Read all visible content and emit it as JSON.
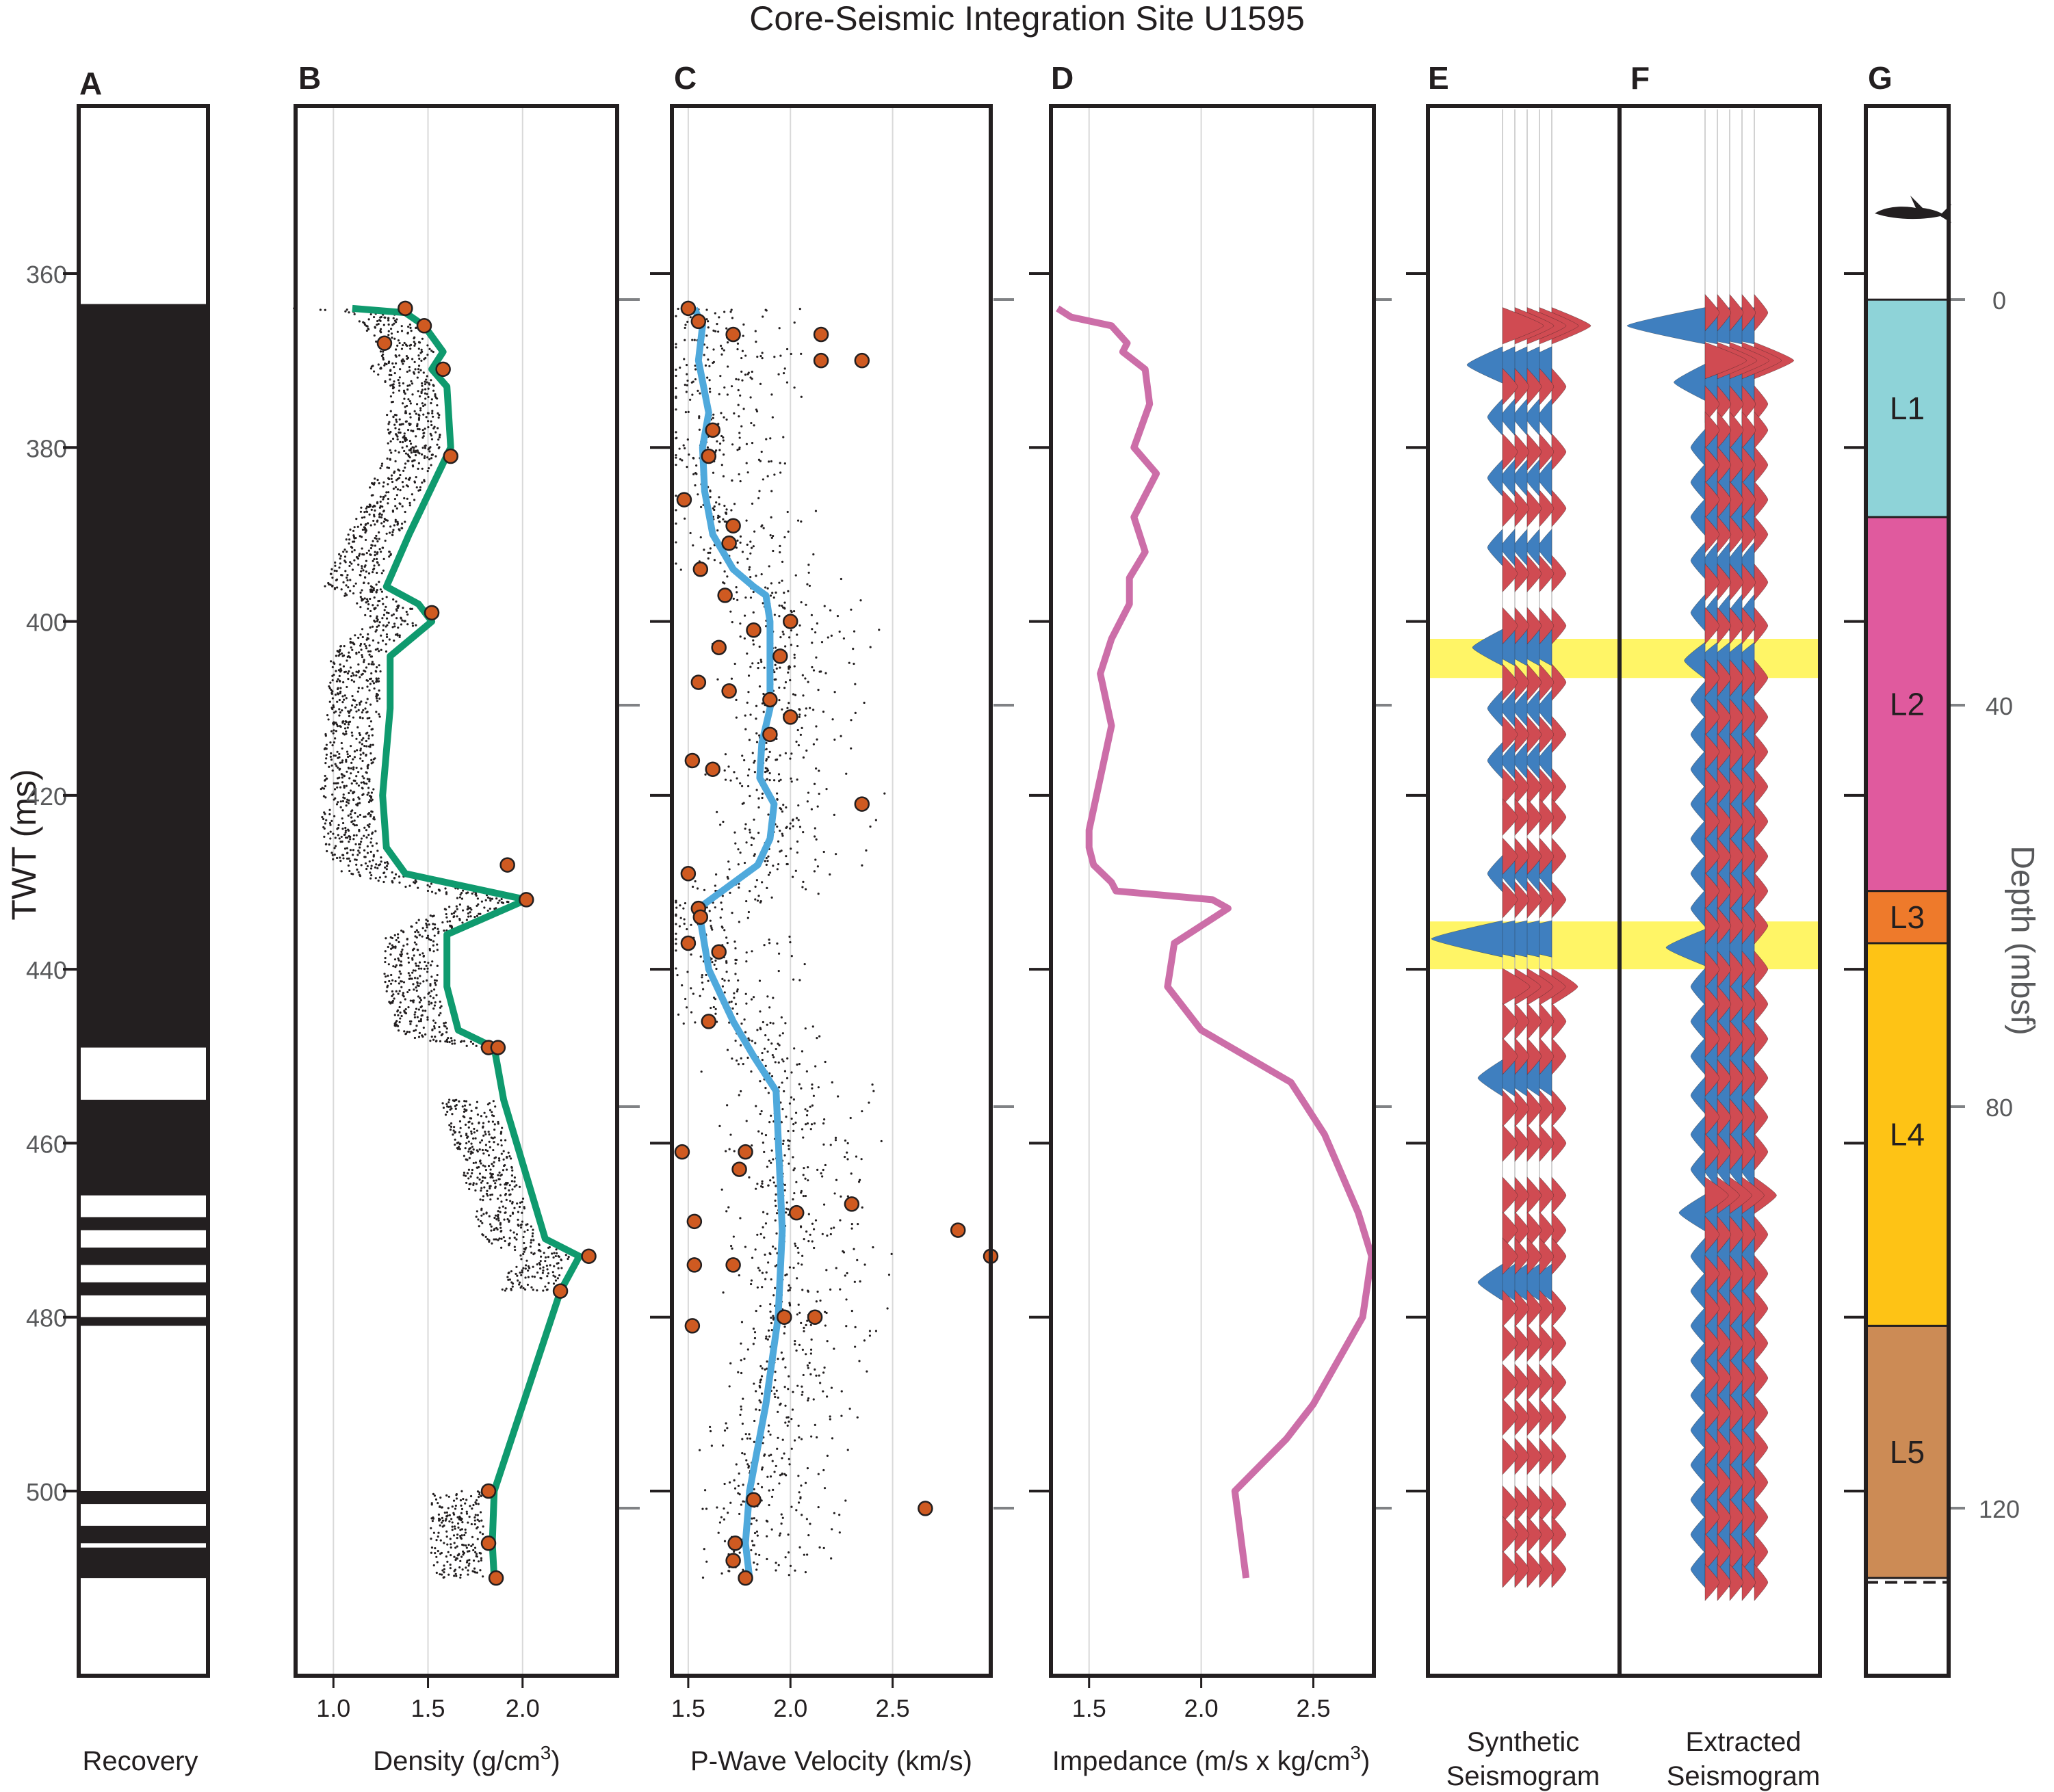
{
  "title": "Core-Seismic Integration Site U1595",
  "panel_letters": [
    "A",
    "B",
    "C",
    "D",
    "E",
    "F",
    "G"
  ],
  "twt_axis": {
    "label": "TWT (ms)",
    "ticks": [
      360,
      380,
      400,
      420,
      440,
      460,
      480,
      500
    ],
    "range": [
      340,
      520
    ]
  },
  "depth_axis": {
    "label": "Depth (mbsf)",
    "ticks": [
      0,
      40,
      80,
      120
    ]
  },
  "panel_labels": {
    "A": "Recovery",
    "B": "Density (g/cm",
    "B_sup": "3",
    "B_tail": ")",
    "C": "P-Wave Velocity (km/s)",
    "D": "Impedance (m/s x kg/cm",
    "D_sup": "3",
    "D_tail": ")",
    "E1": "Synthetic",
    "E2": "Seismogram",
    "F1": "Extracted",
    "F2": "Seismogram"
  },
  "colors": {
    "density_line": "#0f9a6e",
    "velocity_line": "#4fa9dc",
    "impedance_line": "#cc6ea8",
    "sample_fill": "#cf5a21",
    "wiggle_positive": "#d04b52",
    "wiggle_negative": "#3f7fbf",
    "highlight": "#fff566",
    "L1": "#8ed3d8",
    "L2": "#e05a9e",
    "L3": "#ee7a2b",
    "L4": "#fec315",
    "L5": "#cc8b55"
  },
  "shark_icon": "shark-icon",
  "chart_data": [
    {
      "panel": "A",
      "type": "table",
      "xlabel": "Recovery",
      "recovered_intervals_ms": [
        [
          363.5,
          449
        ],
        [
          455,
          466
        ],
        [
          468.5,
          470
        ],
        [
          472,
          474
        ],
        [
          476,
          477.5
        ],
        [
          480,
          481
        ],
        [
          500,
          501.5
        ],
        [
          504,
          506
        ],
        [
          506.5,
          510
        ]
      ]
    },
    {
      "panel": "B",
      "type": "line",
      "xlabel": "Density (g/cm3)",
      "xticks": [
        1.0,
        1.5,
        2.0
      ],
      "xlim": [
        0.8,
        2.5
      ],
      "series": [
        {
          "x": [
            1.1,
            1.38,
            1.48,
            1.58,
            1.52,
            1.6,
            1.62,
            1.4,
            1.32,
            1.28,
            1.45,
            1.52,
            1.3,
            1.3,
            1.26,
            1.28,
            1.38,
            2.02,
            1.6,
            1.6,
            1.66,
            1.85,
            1.9,
            2.12,
            2.3,
            2.2,
            1.85,
            1.84,
            1.85
          ],
          "y": [
            364,
            364.5,
            366,
            369,
            371,
            373,
            380,
            390,
            394,
            396,
            398,
            400,
            404,
            410,
            420,
            426,
            429,
            432,
            436,
            442,
            447,
            449,
            455,
            471,
            473,
            477,
            500,
            506,
            510
          ]
        }
      ],
      "samples": {
        "x": [
          1.38,
          1.48,
          1.27,
          1.58,
          1.62,
          1.52,
          1.92,
          2.02,
          1.82,
          1.87,
          2.35,
          2.2,
          1.82,
          1.82,
          1.86
        ],
        "y": [
          364,
          366,
          368,
          371,
          381,
          399,
          428,
          432,
          449,
          449,
          473,
          477,
          500,
          506,
          510
        ]
      }
    },
    {
      "panel": "C",
      "type": "line",
      "xlabel": "P-Wave Velocity (km/s)",
      "xticks": [
        1.5,
        2.0,
        2.5
      ],
      "xlim": [
        1.42,
        2.98
      ],
      "series": [
        {
          "x": [
            1.53,
            1.57,
            1.55,
            1.6,
            1.57,
            1.58,
            1.62,
            1.72,
            1.82,
            1.88,
            1.9,
            1.9,
            1.9,
            1.86,
            1.85,
            1.92,
            1.9,
            1.84,
            1.55,
            1.6,
            1.72,
            1.82,
            1.93,
            1.96,
            1.94,
            1.88,
            1.8,
            1.78,
            1.8
          ],
          "y": [
            364,
            366,
            370,
            376,
            380,
            385,
            390,
            394,
            396,
            397,
            400,
            404,
            410,
            414,
            418,
            421,
            425,
            428,
            433,
            440,
            446,
            450,
            454,
            470,
            480,
            490,
            500,
            506,
            510
          ]
        }
      ],
      "samples": {
        "x": [
          1.5,
          1.55,
          1.72,
          2.15,
          2.15,
          1.62,
          2.35,
          1.6,
          1.48,
          1.72,
          1.7,
          1.56,
          1.68,
          2.0,
          1.82,
          1.65,
          1.95,
          1.55,
          1.7,
          1.9,
          2.0,
          1.9,
          2.35,
          1.52,
          1.62,
          1.5,
          1.55,
          1.56,
          1.5,
          1.65,
          1.6,
          1.47,
          1.78,
          1.75,
          2.3,
          2.03,
          1.53,
          2.82,
          2.98,
          1.53,
          1.72,
          1.97,
          2.12,
          1.52,
          1.82,
          2.66,
          1.73,
          1.72,
          1.78
        ],
        "y": [
          364,
          365.5,
          367,
          367,
          370,
          378,
          370,
          381,
          386,
          389,
          391,
          394,
          397,
          400,
          401,
          403,
          404,
          407,
          408,
          409,
          411,
          413,
          421,
          416,
          417,
          429,
          433,
          434,
          437,
          438,
          446,
          461,
          461,
          463,
          467,
          468,
          469,
          470,
          473,
          474,
          474,
          480,
          480,
          481,
          501,
          502,
          506,
          508,
          510
        ]
      }
    },
    {
      "panel": "D",
      "type": "line",
      "xlabel": "Impedance (m/s x kg/cm3)",
      "xticks": [
        1.5,
        2.0,
        2.5
      ],
      "xlim": [
        1.33,
        2.77
      ],
      "series": [
        {
          "x": [
            1.36,
            1.42,
            1.6,
            1.67,
            1.65,
            1.75,
            1.77,
            1.7,
            1.8,
            1.7,
            1.75,
            1.68,
            1.68,
            1.6,
            1.55,
            1.6,
            1.55,
            1.5,
            1.5,
            1.52,
            1.6,
            1.62,
            2.05,
            2.12,
            1.88,
            1.85,
            2.0,
            2.4,
            2.55,
            2.7,
            2.76,
            2.72,
            2.5,
            2.38,
            2.15,
            2.18,
            2.2
          ],
          "y": [
            364,
            365,
            366,
            368,
            369,
            371,
            375,
            380,
            383,
            388,
            392,
            395,
            398,
            402,
            406,
            412,
            418,
            424,
            426,
            428,
            430,
            431,
            432,
            433,
            437,
            442,
            447,
            453,
            459,
            468,
            473,
            480,
            490,
            494,
            500,
            506,
            510
          ]
        }
      ]
    },
    {
      "panel": "E",
      "type": "area",
      "xlabel": "Synthetic Seismogram",
      "highlights_ms": [
        [
          402,
          406.5
        ],
        [
          434.5,
          440
        ]
      ],
      "negative_peaks_ms": [
        370.5,
        376.5,
        383.5,
        391.5,
        403,
        410,
        416,
        429,
        436.5,
        452.5,
        476
      ],
      "positive_peaks_ms": [
        366,
        373,
        380.5,
        387,
        394.5,
        400.5,
        407,
        413,
        419,
        422.5,
        427,
        432,
        442,
        446,
        450,
        456,
        460,
        466,
        470,
        473,
        479,
        483,
        487.5,
        491.5,
        496,
        501.5,
        505,
        509
      ]
    },
    {
      "panel": "F",
      "type": "area",
      "xlabel": "Extracted Seismogram",
      "highlights_ms": [
        [
          402,
          406.5
        ],
        [
          434.5,
          440
        ]
      ],
      "negative_peaks_ms": [
        366,
        372.5,
        380,
        384,
        388,
        393,
        399,
        404.5,
        409,
        413,
        417,
        421,
        425,
        429,
        433,
        437.5,
        442,
        446,
        450,
        454.5,
        459,
        463,
        468,
        473,
        477,
        481,
        485,
        489,
        493,
        497,
        501,
        505,
        509
      ],
      "positive_peaks_ms": [
        364.5,
        370,
        375,
        378,
        382,
        386,
        390,
        395.5,
        400.5,
        406.5,
        411,
        415,
        419,
        423,
        427,
        431,
        435,
        440,
        444,
        448,
        452.5,
        457,
        461,
        466,
        470.5,
        475,
        479,
        483,
        487,
        491,
        495,
        499,
        503,
        507,
        510.5
      ]
    },
    {
      "panel": "G",
      "type": "table",
      "xlabel": "Depth (mbsf)",
      "units": [
        {
          "name": "L1",
          "top_ms": 363,
          "bottom_ms": 388
        },
        {
          "name": "L2",
          "top_ms": 388,
          "bottom_ms": 431
        },
        {
          "name": "L3",
          "top_ms": 431,
          "bottom_ms": 437
        },
        {
          "name": "L4",
          "top_ms": 437,
          "bottom_ms": 481
        },
        {
          "name": "L5",
          "top_ms": 481,
          "bottom_ms": 510
        }
      ]
    }
  ]
}
